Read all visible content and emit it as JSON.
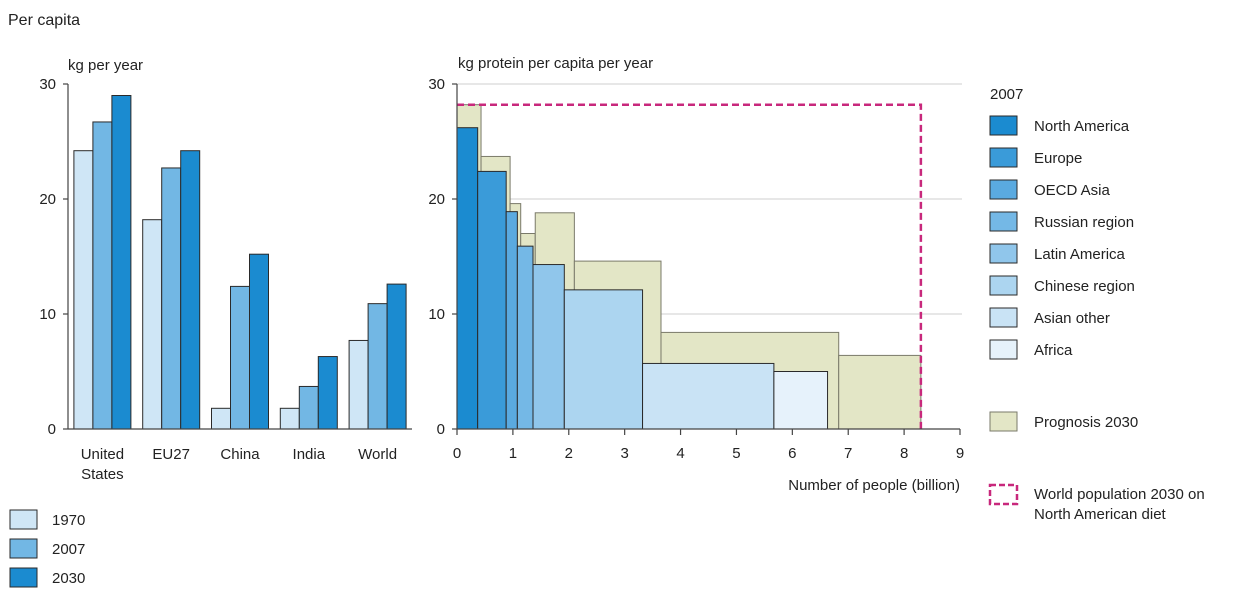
{
  "title": "Per capita",
  "chart_data": [
    {
      "type": "bar",
      "ylabel": "kg per year",
      "ylim": [
        0,
        30
      ],
      "yticks": [
        0,
        10,
        20,
        30
      ],
      "categories": [
        "United States",
        "EU27",
        "China",
        "India",
        "World"
      ],
      "category_lines": [
        [
          "United",
          "States"
        ],
        [
          "EU27"
        ],
        [
          "China"
        ],
        [
          "India"
        ],
        [
          "World"
        ]
      ],
      "series": [
        {
          "name": "1970",
          "values": [
            24.2,
            18.2,
            1.8,
            1.8,
            7.7
          ],
          "color": "#cfe6f6"
        },
        {
          "name": "2007",
          "values": [
            26.7,
            22.7,
            12.4,
            3.7,
            10.9
          ],
          "color": "#72b7e4"
        },
        {
          "name": "2030",
          "values": [
            29.0,
            24.2,
            15.2,
            6.3,
            12.6
          ],
          "color": "#1b8bd0"
        }
      ],
      "legend_position": "bottom-left",
      "grid": false
    },
    {
      "type": "area",
      "subtype": "variable-width-bar",
      "ylabel": "kg protein per capita per year",
      "xlabel": "Number of people (billion)",
      "xlim": [
        0,
        9
      ],
      "ylim": [
        0,
        30
      ],
      "xticks": [
        0,
        1,
        2,
        3,
        4,
        5,
        6,
        7,
        8,
        9
      ],
      "yticks": [
        0,
        10,
        20,
        30
      ],
      "grid": true,
      "legend_title": "2007",
      "legend_position": "right",
      "regions_2007": [
        {
          "name": "North America",
          "x0": 0.0,
          "x1": 0.37,
          "value": 26.2,
          "color": "#1b8bd0"
        },
        {
          "name": "Europe",
          "x0": 0.37,
          "x1": 0.88,
          "value": 22.4,
          "color": "#3a9bd9"
        },
        {
          "name": "OECD Asia",
          "x0": 0.88,
          "x1": 1.08,
          "value": 18.9,
          "color": "#5aaae0"
        },
        {
          "name": "Russian region",
          "x0": 1.08,
          "x1": 1.36,
          "value": 15.9,
          "color": "#74b8e6"
        },
        {
          "name": "Latin America",
          "x0": 1.36,
          "x1": 1.92,
          "value": 14.3,
          "color": "#90c6eb"
        },
        {
          "name": "Chinese region",
          "x0": 1.92,
          "x1": 3.32,
          "value": 12.1,
          "color": "#acd5f0"
        },
        {
          "name": "Asian other",
          "x0": 3.32,
          "x1": 5.67,
          "value": 5.7,
          "color": "#c9e3f5"
        },
        {
          "name": "Africa",
          "x0": 5.67,
          "x1": 6.63,
          "value": 5.0,
          "color": "#e6f2fb"
        }
      ],
      "prognosis_2030": {
        "name": "Prognosis 2030",
        "color": "#e3e6c6",
        "edge_color": "#7a7a6a",
        "blocks": [
          {
            "x0": 0.0,
            "x1": 0.43,
            "value": 28.2
          },
          {
            "x0": 0.43,
            "x1": 0.95,
            "value": 23.7
          },
          {
            "x0": 0.95,
            "x1": 1.14,
            "value": 19.6
          },
          {
            "x0": 1.14,
            "x1": 1.4,
            "value": 17.0
          },
          {
            "x0": 1.4,
            "x1": 2.1,
            "value": 18.8
          },
          {
            "x0": 2.1,
            "x1": 3.65,
            "value": 14.6
          },
          {
            "x0": 3.65,
            "x1": 6.83,
            "value": 8.4
          },
          {
            "x0": 6.83,
            "x1": 8.3,
            "value": 6.4
          }
        ]
      },
      "north_american_diet_2030": {
        "name": [
          "World population 2030 on",
          "North American diet"
        ],
        "x0": 0.0,
        "x1": 8.3,
        "value": 28.2,
        "color": "#c8287c"
      }
    }
  ]
}
